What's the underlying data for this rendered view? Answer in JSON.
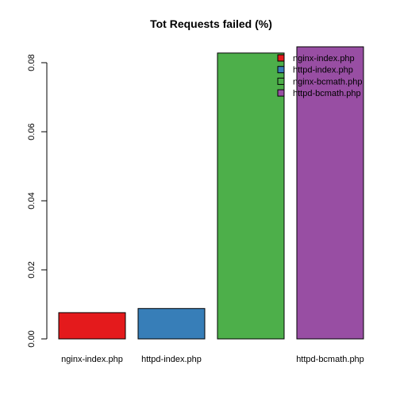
{
  "chart_data": {
    "type": "bar",
    "title": "Tot Requests failed (%)",
    "xlabel": "",
    "ylabel": "",
    "categories": [
      "nginx-index.php",
      "httpd-index.php",
      "nginx-bcmath.php",
      "httpd-bcmath.php"
    ],
    "category_labels_shown": [
      "nginx-index.php",
      "httpd-index.php",
      "",
      "httpd-bcmath.php"
    ],
    "values": [
      0.0076,
      0.0088,
      0.0828,
      0.0846
    ],
    "colors": [
      "#E41A1C",
      "#377EB8",
      "#4DAF4A",
      "#984EA3"
    ],
    "ylim": [
      0,
      0.08
    ],
    "yticks": [
      0.0,
      0.02,
      0.04,
      0.06,
      0.08
    ],
    "ytick_labels": [
      "0.00",
      "0.02",
      "0.04",
      "0.06",
      "0.08"
    ],
    "grid": false,
    "legend": {
      "position": "top-right",
      "entries": [
        "nginx-index.php",
        "httpd-index.php",
        "nginx-bcmath.php",
        "httpd-bcmath.php"
      ]
    }
  }
}
